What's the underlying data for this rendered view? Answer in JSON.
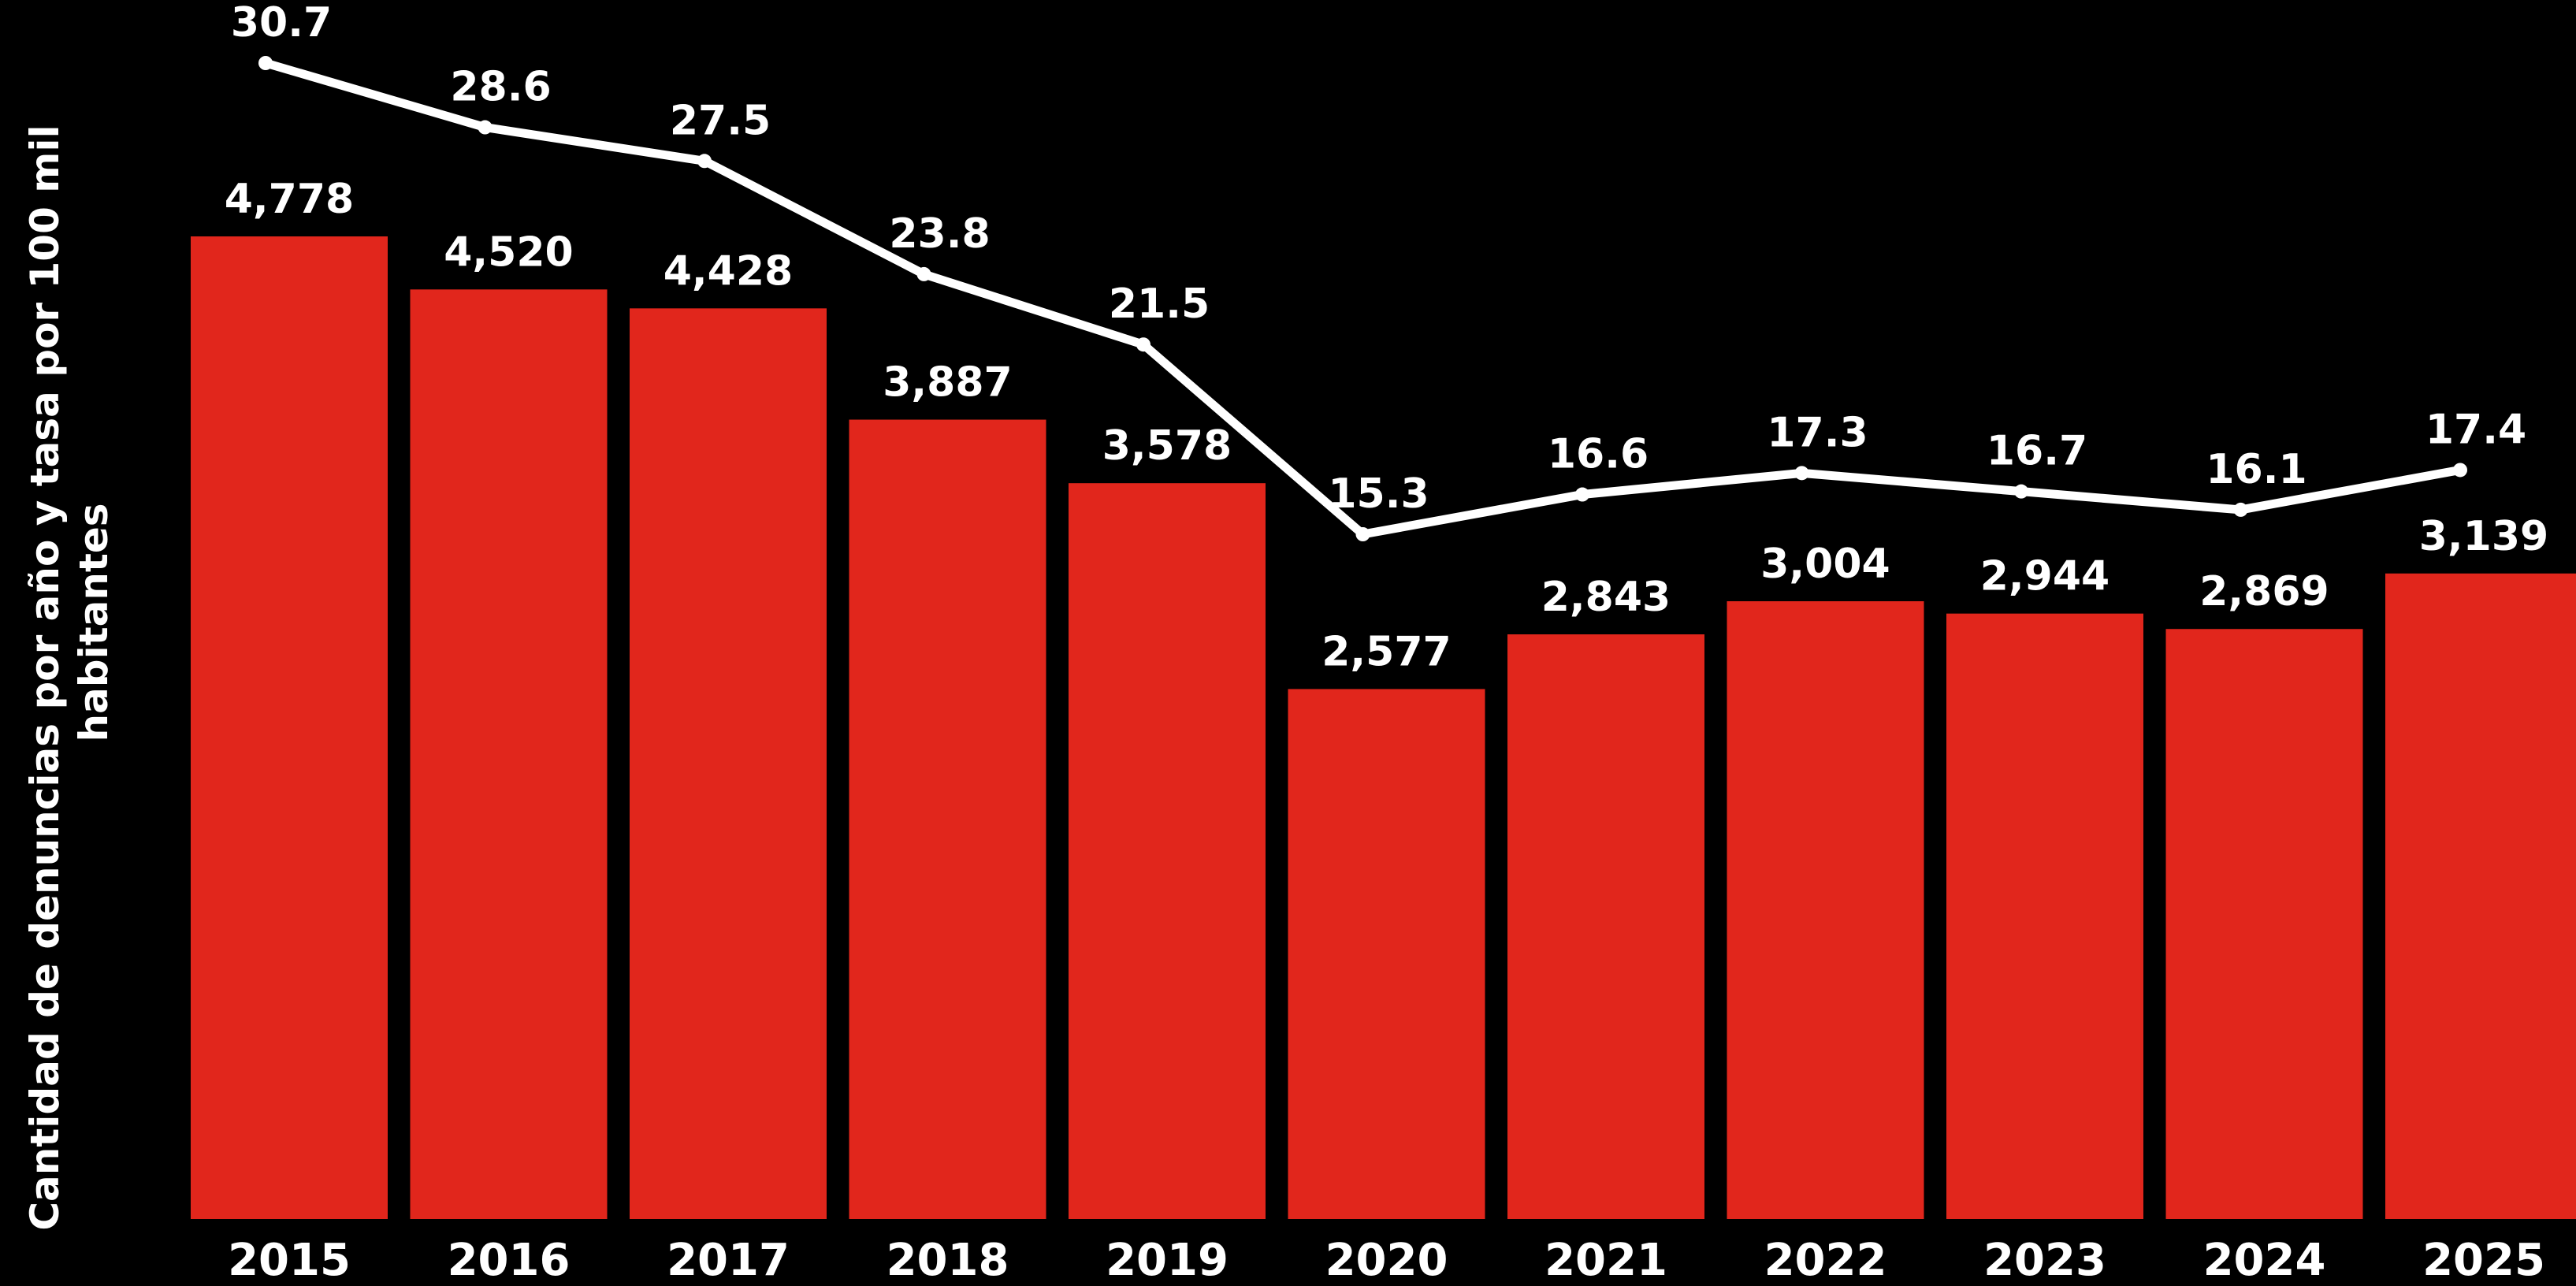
{
  "chart_data": {
    "type": "bar",
    "title": "",
    "xlabel": "",
    "ylabel": "Cantidad de denuncias por año y tasa por 100 mil habitantes",
    "ylabel_lines": [
      "Cantidad de denuncias por año y tasa por 100 mil",
      "habitantes"
    ],
    "categories": [
      "2015",
      "2016",
      "2017",
      "2018",
      "2019",
      "2020",
      "2021",
      "2022",
      "2023",
      "2024",
      "2025"
    ],
    "series": [
      {
        "type": "bar",
        "color": "#e1261c",
        "values": [
          4778,
          4520,
          4428,
          3887,
          3578,
          2577,
          2843,
          3004,
          2944,
          2869,
          3139
        ],
        "labels": [
          "4,778",
          "4,520",
          "4,428",
          "3,887",
          "3,578",
          "2,577",
          "2,843",
          "3,004",
          "2,944",
          "2,869",
          "3,139"
        ]
      },
      {
        "type": "line",
        "color": "#ffffff",
        "values": [
          30.7,
          28.6,
          27.5,
          23.8,
          21.5,
          15.3,
          16.6,
          17.3,
          16.7,
          16.1,
          17.4
        ],
        "labels": [
          "30.7",
          "28.6",
          "27.5",
          "23.8",
          "21.5",
          "15.3",
          "16.6",
          "17.3",
          "16.7",
          "16.1",
          "17.4"
        ]
      }
    ],
    "bar_ylim": [
      0,
      4778
    ],
    "line_ylim": [
      0,
      30.7
    ],
    "grid": false,
    "legend": "none",
    "background": "#000000"
  }
}
